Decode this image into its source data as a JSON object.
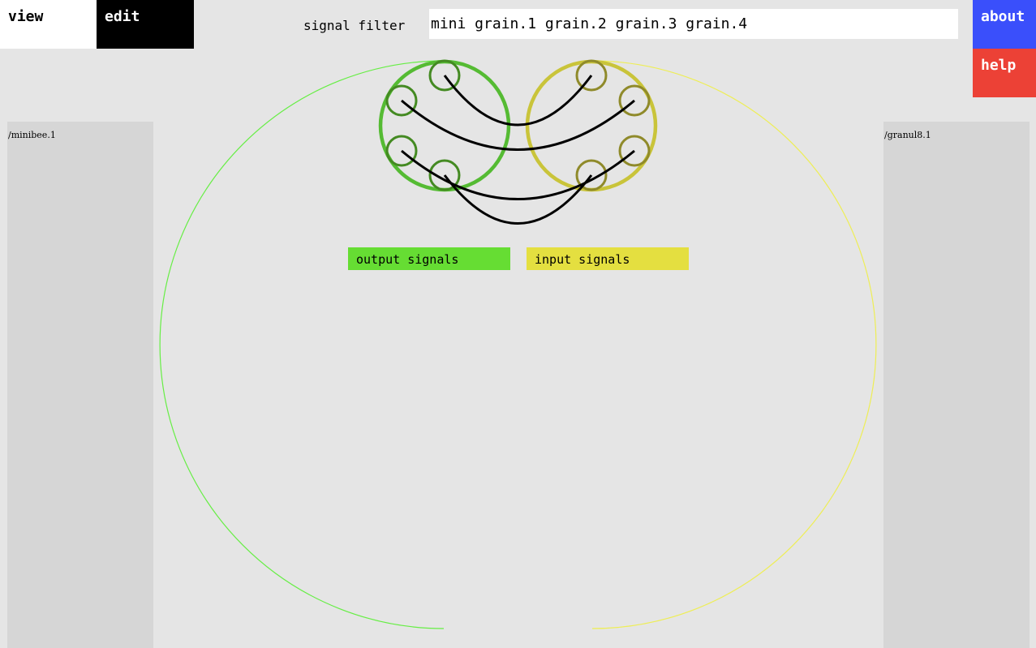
{
  "modes": {
    "view_label": "view",
    "edit_label": "edit"
  },
  "filter": {
    "label": "signal filter",
    "value": "mini grain.1 grain.2 grain.3 grain.4"
  },
  "buttons": {
    "about_label": "about",
    "help_label": "help"
  },
  "devices": {
    "source_name": "/minibee.1",
    "destination_name": "/granul8.1"
  },
  "legend": {
    "output_label": "output signals",
    "input_label": "input signals"
  },
  "colors": {
    "background": "#e5e5e5",
    "panel": "#d6d6d6",
    "output": "#66dd33",
    "input": "#e4df40",
    "about": "#3a4ffb",
    "help": "#ec4136"
  }
}
